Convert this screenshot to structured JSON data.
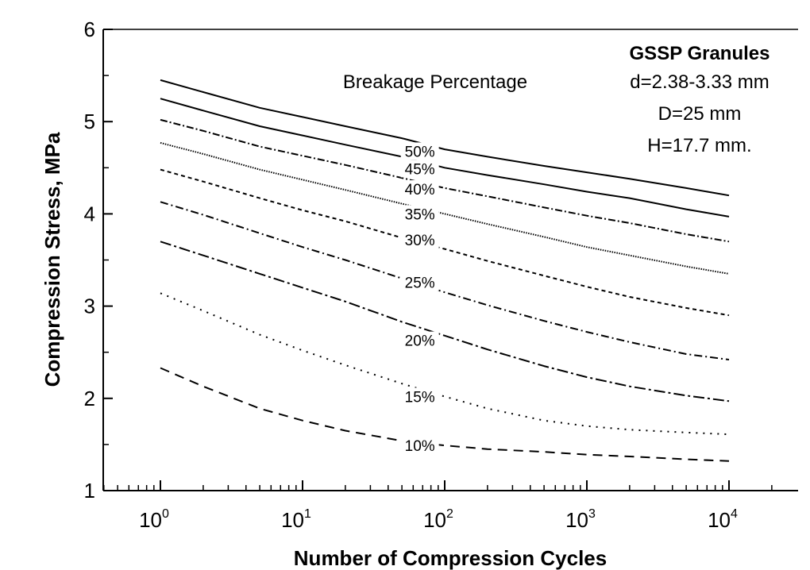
{
  "chart_data": {
    "type": "line",
    "xlabel": "Number of Compression Cycles",
    "ylabel": "Compression Stress, MPa",
    "x_scale": "log",
    "xlim": [
      0.4,
      10000
    ],
    "ylim": [
      1,
      6
    ],
    "x_ticks": [
      {
        "value": 1,
        "base": "10",
        "exp": "0"
      },
      {
        "value": 10,
        "base": "10",
        "exp": "1"
      },
      {
        "value": 100,
        "base": "10",
        "exp": "2"
      },
      {
        "value": 1000,
        "base": "10",
        "exp": "3"
      },
      {
        "value": 10000,
        "base": "10",
        "exp": "4"
      }
    ],
    "y_ticks": [
      "1",
      "2",
      "3",
      "4",
      "5",
      "6"
    ],
    "legend_title": "Breakage Percentage",
    "annotations": {
      "title": "GSSP Granules",
      "line1": "d=2.38-3.33 mm",
      "line2": "D=25 mm",
      "line3": "H=17.7 mm."
    },
    "x": [
      1,
      2,
      5,
      10,
      20,
      50,
      100,
      200,
      500,
      1000,
      2000,
      5000,
      10000
    ],
    "series": [
      {
        "name": "50%",
        "label_x": 80,
        "label_y": 4.68,
        "style": "solid",
        "values": [
          5.45,
          5.32,
          5.15,
          5.05,
          4.95,
          4.82,
          4.7,
          4.62,
          4.52,
          4.45,
          4.38,
          4.28,
          4.2
        ]
      },
      {
        "name": "45%",
        "label_x": 80,
        "label_y": 4.49,
        "style": "solid",
        "values": [
          5.25,
          5.12,
          4.95,
          4.85,
          4.75,
          4.62,
          4.5,
          4.42,
          4.32,
          4.24,
          4.17,
          4.05,
          3.97
        ]
      },
      {
        "name": "40%",
        "label_x": 80,
        "label_y": 4.27,
        "style": "dashdot-fine",
        "values": [
          5.02,
          4.9,
          4.73,
          4.63,
          4.53,
          4.39,
          4.28,
          4.19,
          4.07,
          3.98,
          3.9,
          3.78,
          3.7
        ]
      },
      {
        "name": "35%",
        "label_x": 80,
        "label_y": 4.0,
        "style": "dotted-dense",
        "values": [
          4.77,
          4.65,
          4.48,
          4.37,
          4.26,
          4.11,
          4.0,
          3.89,
          3.75,
          3.64,
          3.55,
          3.43,
          3.35
        ]
      },
      {
        "name": "30%",
        "label_x": 80,
        "label_y": 3.72,
        "style": "dashed-short",
        "values": [
          4.48,
          4.35,
          4.17,
          4.04,
          3.92,
          3.74,
          3.62,
          3.49,
          3.33,
          3.21,
          3.1,
          2.98,
          2.9
        ]
      },
      {
        "name": "25%",
        "label_x": 80,
        "label_y": 3.26,
        "style": "dashdotdot",
        "values": [
          4.13,
          3.99,
          3.79,
          3.64,
          3.5,
          3.3,
          3.15,
          3.01,
          2.84,
          2.72,
          2.61,
          2.48,
          2.42
        ]
      },
      {
        "name": "20%",
        "label_x": 80,
        "label_y": 2.63,
        "style": "dashdot",
        "values": [
          3.7,
          3.55,
          3.35,
          3.2,
          3.05,
          2.83,
          2.68,
          2.53,
          2.35,
          2.23,
          2.13,
          2.03,
          1.97
        ]
      },
      {
        "name": "15%",
        "label_x": 80,
        "label_y": 2.02,
        "style": "dotted",
        "values": [
          3.14,
          2.95,
          2.69,
          2.52,
          2.36,
          2.16,
          2.02,
          1.89,
          1.76,
          1.7,
          1.66,
          1.63,
          1.61
        ]
      },
      {
        "name": "10%",
        "label_x": 80,
        "label_y": 1.49,
        "style": "dashed",
        "values": [
          2.33,
          2.13,
          1.89,
          1.76,
          1.65,
          1.54,
          1.49,
          1.45,
          1.42,
          1.39,
          1.37,
          1.34,
          1.32
        ]
      }
    ]
  }
}
